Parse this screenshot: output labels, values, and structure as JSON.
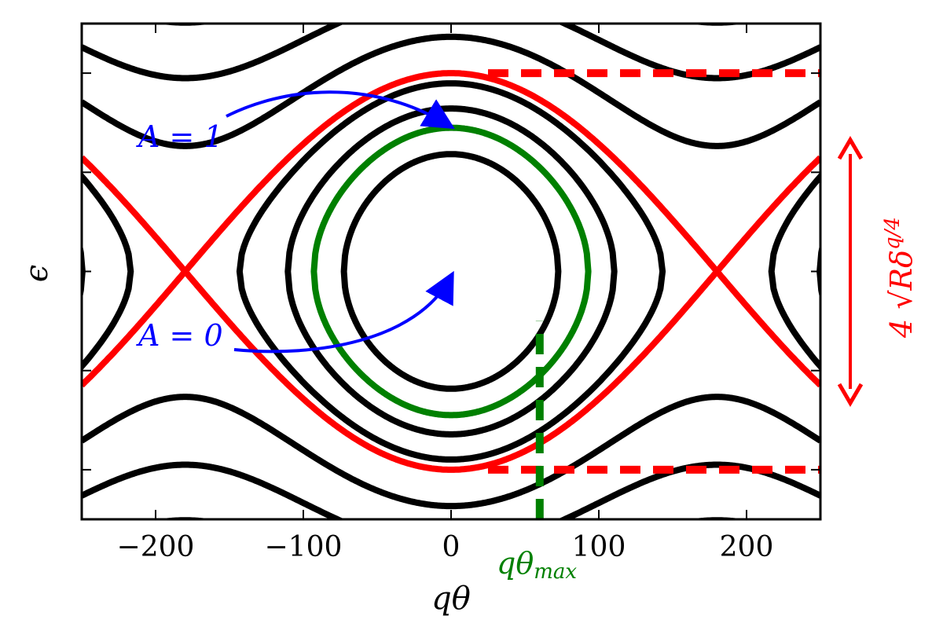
{
  "chart_data": {
    "type": "line",
    "title": "",
    "xlabel": "qθ",
    "ylabel": "ϵ",
    "xlim": [
      -250,
      250
    ],
    "ylim": [
      -2.5,
      2.5
    ],
    "xticks": [
      -200,
      -100,
      0,
      100,
      200
    ],
    "xtick_labels": [
      "−200",
      "−100",
      "0",
      "100",
      "200"
    ],
    "yticks": [
      -2,
      -1,
      0,
      1,
      2
    ],
    "ytick_labels_shown": false,
    "grid": false,
    "legend": "none",
    "model": "pendulum phase portrait: ϵ = ±sqrt(2·(cos(qθ in degrees) + C))",
    "series": [
      {
        "color": "#000000",
        "style": "solid",
        "family": "libration",
        "C": -0.3
      },
      {
        "color": "#000000",
        "style": "solid",
        "family": "libration",
        "C": 0.35
      },
      {
        "color": "#000000",
        "style": "solid",
        "family": "libration",
        "C": 0.8
      },
      {
        "color": "#008000",
        "style": "solid",
        "family": "libration",
        "C": 0.05
      },
      {
        "color": "#ff0000",
        "style": "solid",
        "family": "separatrix",
        "C": 1.0
      },
      {
        "color": "#000000",
        "style": "solid",
        "family": "rotation",
        "C": 1.8
      },
      {
        "color": "#000000",
        "style": "solid",
        "family": "rotation",
        "C": 2.9
      },
      {
        "color": "#000000",
        "style": "solid",
        "family": "rotation",
        "C": 4.15
      },
      {
        "color": "#000000",
        "style": "solid",
        "family": "rotation",
        "C": 6.35
      }
    ],
    "reference_lines": [
      {
        "color": "#ff0000",
        "style": "dashed",
        "orientation": "horizontal",
        "y": 2.0,
        "x_from": 25,
        "x_to": 250
      },
      {
        "color": "#ff0000",
        "style": "dashed",
        "orientation": "horizontal",
        "y": -2.0,
        "x_from": 25,
        "x_to": 250
      },
      {
        "color": "#008000",
        "style": "dashed",
        "orientation": "vertical",
        "x": 60,
        "y_from": -2.5,
        "y_to": -0.5
      }
    ],
    "annotations": [
      {
        "text": "A = 1",
        "color": "#0000ff",
        "arrow_to": [
          0,
          2.0
        ]
      },
      {
        "text": "A = 0",
        "color": "#0000ff",
        "arrow_to": [
          0,
          0
        ]
      },
      {
        "text_base": "qθ",
        "text_sub": "max",
        "color": "#008000"
      },
      {
        "text": "4 √Rδ",
        "text_sup": "q/4",
        "color": "#ff0000",
        "double_arrow": [
          -2.0,
          2.0
        ]
      }
    ]
  }
}
